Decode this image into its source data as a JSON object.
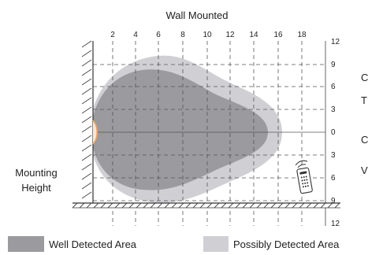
{
  "title": "Wall Mounted",
  "x_ticks": [
    "2",
    "4",
    "6",
    "8",
    "10",
    "12",
    "14",
    "16",
    "18"
  ],
  "y_ticks_upper": [
    "12",
    "9",
    "6",
    "3",
    "0"
  ],
  "y_ticks_lower": [
    "3",
    "6",
    "9",
    "12"
  ],
  "side_label_line1": "Mounting",
  "side_label_line2": "Height",
  "right_clipped_letters": [
    "C",
    "T",
    "C",
    "V"
  ],
  "legend": {
    "well_detected": "Well Detected Area",
    "possibly_detected": "Possibly Detected Area"
  },
  "colors": {
    "well_detected": "#9b9b9f",
    "possibly_detected": "#d0d0d4",
    "sensor": "#e8a060",
    "grid": "#555555"
  },
  "icons": [
    "remote-control-icon",
    "sensor-icon",
    "wall-hatch",
    "floor-hatch"
  ]
}
